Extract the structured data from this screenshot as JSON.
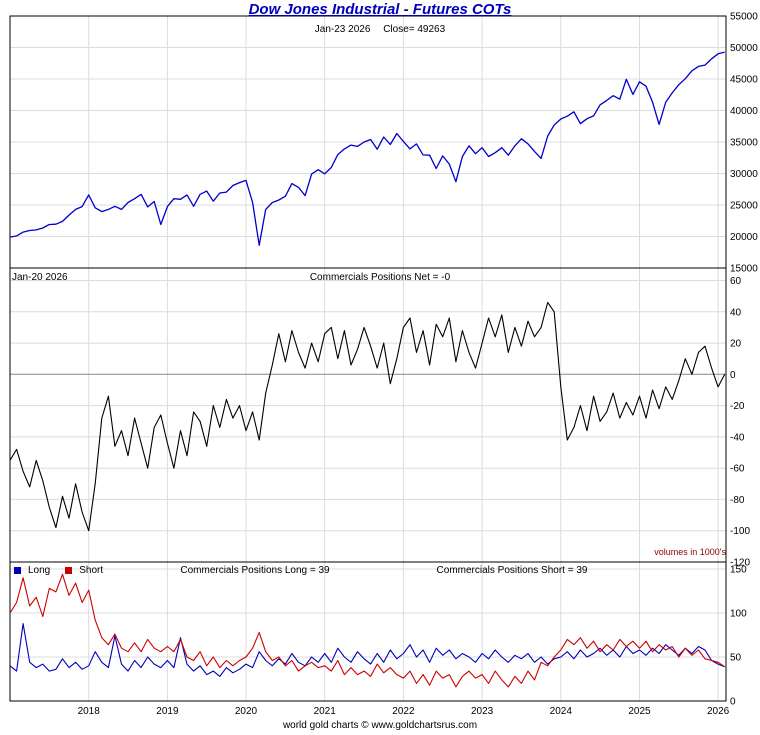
{
  "title": "Dow Jones Industrial - Futures COTs",
  "header": {
    "date_label": "Jan-23 2026",
    "close_label": "Close= 49263"
  },
  "footer": "world gold charts © www.goldchartsrus.com",
  "colors": {
    "title": "#0000bb",
    "price_line": "#0000cc",
    "net_line": "#000000",
    "long_line": "#0000bb",
    "short_line": "#cc0000",
    "grid": "#dcdcdc",
    "zero_line": "#888888",
    "volumes_note": "#8b0000"
  },
  "chart_data": {
    "type": "line",
    "x_range": [
      2017.0,
      2026.1
    ],
    "x_ticks": [
      2018,
      2019,
      2020,
      2021,
      2022,
      2023,
      2024,
      2025,
      2026
    ],
    "panels": [
      {
        "id": "price",
        "ylim": [
          15000,
          55000
        ],
        "yticks": [
          15000,
          20000,
          25000,
          30000,
          35000,
          40000,
          45000,
          50000,
          55000
        ],
        "series": [
          {
            "name": "dow-jones-close",
            "color": "#0000cc",
            "width": 1.3,
            "x_start": 2017.0,
            "x_step": 0.0833333,
            "values": [
              19900,
              20100,
              20700,
              20950,
              21050,
              21350,
              21900,
              21950,
              22400,
              23400,
              24300,
              24750,
              26600,
              24550,
              23950,
              24300,
              24800,
              24300,
              25400,
              26000,
              26700,
              24700,
              25550,
              21900,
              24750,
              26000,
              25900,
              26600,
              24800,
              26700,
              27200,
              25600,
              26900,
              27050,
              28100,
              28550,
              28900,
              25400,
              18600,
              24300,
              25400,
              25800,
              26400,
              28400,
              27800,
              26500,
              29900,
              30600,
              29950,
              30950,
              33000,
              33900,
              34500,
              34300,
              35000,
              35400,
              33850,
              35800,
              34600,
              36350,
              35100,
              33900,
              34700,
              32950,
              32900,
              30800,
              32800,
              31500,
              28700,
              32700,
              34400,
              33150,
              34100,
              32700,
              33300,
              34100,
              32900,
              34400,
              35500,
              34700,
              33500,
              32400,
              35950,
              37700,
              38650,
              39100,
              39800,
              37900,
              38700,
              39150,
              40900,
              41600,
              42350,
              41800,
              44950,
              42550,
              44550,
              43850,
              41300,
              37800,
              41300,
              42800,
              44100,
              45050,
              46300,
              47000,
              47200,
              48200,
              49000,
              49263
            ]
          }
        ]
      },
      {
        "id": "net",
        "date_label": "Jan-20 2026",
        "label": "Commercials Positions Net = -0",
        "volumes_note": "volumes in 1000's",
        "ylim": [
          -120,
          68
        ],
        "yticks": [
          -120,
          -100,
          -80,
          -60,
          -40,
          -20,
          0,
          20,
          40,
          60
        ],
        "zero_line": true,
        "series": [
          {
            "name": "commercials-net",
            "color": "#000000",
            "width": 1.1,
            "x_start": 2017.0,
            "x_step": 0.0833333,
            "values": [
              -55,
              -48,
              -62,
              -72,
              -55,
              -68,
              -85,
              -98,
              -78,
              -92,
              -70,
              -88,
              -100,
              -70,
              -28,
              -14,
              -46,
              -36,
              -52,
              -28,
              -44,
              -60,
              -34,
              -26,
              -44,
              -60,
              -36,
              -52,
              -24,
              -30,
              -46,
              -20,
              -34,
              -16,
              -28,
              -20,
              -36,
              -24,
              -42,
              -12,
              6,
              26,
              8,
              28,
              14,
              4,
              20,
              8,
              26,
              30,
              10,
              28,
              6,
              16,
              30,
              18,
              4,
              20,
              -6,
              10,
              30,
              36,
              14,
              28,
              6,
              32,
              24,
              36,
              8,
              28,
              14,
              4,
              20,
              36,
              24,
              38,
              14,
              30,
              18,
              34,
              24,
              30,
              46,
              40,
              -8,
              -42,
              -34,
              -20,
              -36,
              -14,
              -30,
              -24,
              -12,
              -28,
              -18,
              -26,
              -14,
              -28,
              -10,
              -22,
              -8,
              -16,
              -4,
              10,
              0,
              14,
              18,
              4,
              -8,
              0
            ]
          }
        ]
      },
      {
        "id": "positions",
        "legend": [
          {
            "label": "Long",
            "color": "#0000bb"
          },
          {
            "label": "Short",
            "color": "#cc0000"
          }
        ],
        "long_label": "Commercials Positions Long = 39",
        "short_label": "Commercials Positions Short = 39",
        "ylim": [
          0,
          158
        ],
        "yticks": [
          0,
          50,
          100,
          150
        ],
        "series": [
          {
            "name": "commercials-long",
            "color": "#0000bb",
            "width": 1.1,
            "x_start": 2017.0,
            "x_step": 0.0833333,
            "values": [
              40,
              34,
              88,
              44,
              38,
              42,
              34,
              36,
              48,
              38,
              44,
              36,
              40,
              56,
              44,
              38,
              74,
              42,
              34,
              46,
              38,
              50,
              42,
              38,
              46,
              38,
              72,
              42,
              34,
              40,
              30,
              34,
              28,
              38,
              32,
              36,
              42,
              38,
              56,
              46,
              40,
              48,
              42,
              54,
              44,
              40,
              50,
              44,
              54,
              44,
              60,
              50,
              44,
              56,
              48,
              42,
              54,
              44,
              58,
              48,
              54,
              64,
              50,
              58,
              44,
              60,
              52,
              58,
              48,
              54,
              50,
              44,
              54,
              48,
              58,
              50,
              44,
              52,
              48,
              54,
              44,
              50,
              42,
              48,
              50,
              56,
              48,
              58,
              50,
              54,
              60,
              52,
              58,
              50,
              62,
              54,
              58,
              52,
              60,
              54,
              64,
              58,
              52,
              60,
              54,
              62,
              58,
              46,
              42,
              39
            ]
          },
          {
            "name": "commercials-short",
            "color": "#cc0000",
            "width": 1.1,
            "x_start": 2017.0,
            "x_step": 0.0833333,
            "values": [
              100,
              112,
              140,
              108,
              118,
              96,
              128,
              124,
              144,
              120,
              134,
              112,
              126,
              92,
              72,
              64,
              76,
              60,
              56,
              66,
              56,
              70,
              60,
              56,
              62,
              56,
              70,
              50,
              46,
              56,
              40,
              50,
              38,
              46,
              40,
              46,
              50,
              60,
              78,
              56,
              46,
              50,
              40,
              46,
              34,
              40,
              44,
              38,
              40,
              34,
              46,
              30,
              38,
              30,
              34,
              28,
              42,
              32,
              38,
              30,
              26,
              34,
              20,
              30,
              18,
              34,
              26,
              30,
              16,
              28,
              34,
              26,
              30,
              20,
              34,
              24,
              16,
              28,
              20,
              34,
              24,
              44,
              40,
              50,
              58,
              70,
              64,
              72,
              60,
              68,
              56,
              64,
              58,
              70,
              62,
              68,
              60,
              68,
              56,
              64,
              58,
              62,
              50,
              60,
              52,
              58,
              48,
              46,
              44,
              39
            ]
          }
        ]
      }
    ]
  }
}
